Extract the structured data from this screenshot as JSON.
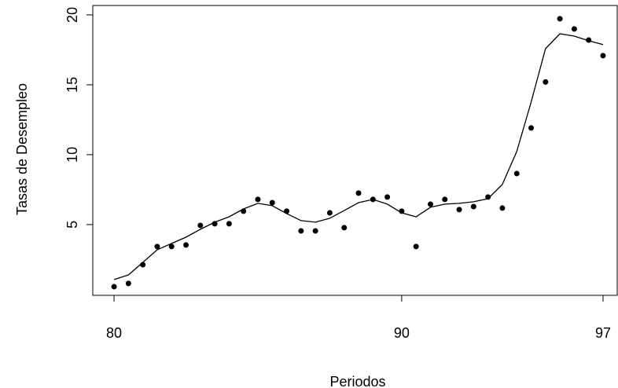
{
  "chart_data": {
    "type": "scatter",
    "x_label": "Periodos",
    "y_label": "Tasas de Desempleo",
    "x": [
      80,
      80.5,
      81,
      81.5,
      82,
      82.5,
      83,
      83.5,
      84,
      84.5,
      85,
      85.5,
      86,
      86.5,
      87,
      87.5,
      88,
      88.5,
      89,
      89.5,
      90,
      90.5,
      91,
      91.5,
      92,
      92.5,
      93,
      93.5,
      94,
      94.5,
      95,
      95.5,
      96,
      96.5,
      97
    ],
    "series": [
      {
        "style": "points",
        "color": "#000000",
        "values": [
          0.56,
          0.79,
          2.13,
          3.43,
          3.43,
          3.54,
          4.94,
          5.06,
          5.06,
          5.96,
          6.8,
          6.57,
          5.96,
          4.55,
          4.55,
          5.84,
          4.78,
          7.25,
          6.8,
          6.97,
          5.96,
          3.43,
          6.46,
          6.8,
          6.07,
          6.29,
          6.97,
          6.18,
          8.65,
          11.91,
          15.2,
          19.72,
          18.99,
          18.2,
          17.08
        ]
      },
      {
        "style": "line",
        "color": "#000000",
        "values": [
          1.07,
          1.4,
          2.3,
          3.2,
          3.65,
          4.1,
          4.66,
          5.17,
          5.56,
          6.12,
          6.52,
          6.35,
          5.79,
          5.28,
          5.17,
          5.45,
          6.0,
          6.57,
          6.8,
          6.46,
          5.84,
          5.56,
          6.24,
          6.46,
          6.52,
          6.63,
          6.85,
          7.87,
          10.22,
          13.76,
          17.58,
          18.65,
          18.48,
          18.15,
          17.87
        ]
      }
    ],
    "xlim": [
      79.26,
      97.52
    ],
    "ylim": [
      -0.06,
      20.67
    ],
    "xticks": [
      80,
      90,
      97
    ],
    "yticks": [
      5,
      10,
      15,
      20
    ]
  }
}
